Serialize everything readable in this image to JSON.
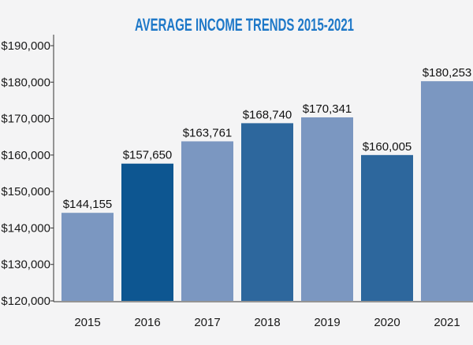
{
  "chart_data": {
    "type": "bar",
    "title": "AVERAGE INCOME TRENDS 2015-2021",
    "xlabel": "",
    "ylabel": "",
    "categories": [
      "2015",
      "2016",
      "2017",
      "2018",
      "2019",
      "2020",
      "2021"
    ],
    "values": [
      144155,
      157650,
      163761,
      168740,
      170341,
      160005,
      180253
    ],
    "data_labels": [
      "$144,155",
      "$157,650",
      "$163,761",
      "$168,740",
      "$170,341",
      "$160,005",
      "$180,253"
    ],
    "ylim": [
      120000,
      190000
    ],
    "yticks": [
      120000,
      130000,
      140000,
      150000,
      160000,
      170000,
      180000,
      190000
    ],
    "ytick_labels": [
      "$120,000",
      "$130,000",
      "$140,000",
      "$150,000",
      "$160,000",
      "$170,000",
      "$180,000",
      "$190,000"
    ],
    "grid": false,
    "bar_colors": [
      "#7b97c1",
      "#0d5691",
      "#7b97c1",
      "#2d679d",
      "#7b97c1",
      "#2d679d",
      "#7b97c1"
    ],
    "title_color": "#1e78c8",
    "axis_color": "#333333"
  }
}
